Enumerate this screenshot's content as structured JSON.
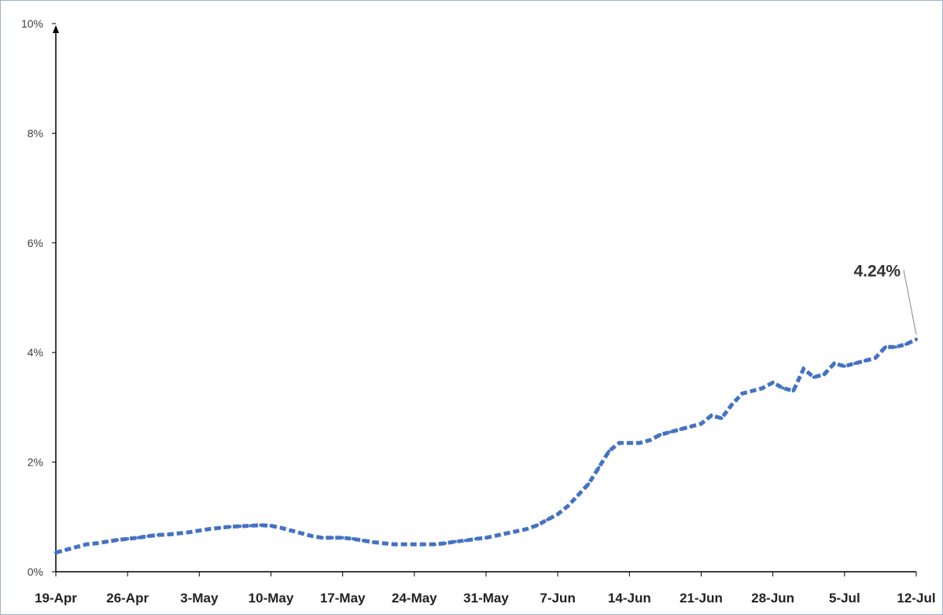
{
  "chart_data": {
    "type": "line",
    "title": "",
    "xlabel": "",
    "ylabel": "",
    "ylim": [
      0,
      10
    ],
    "yticks": [
      "0%",
      "2%",
      "4%",
      "6%",
      "8%",
      "10%"
    ],
    "xticks": [
      "19-Apr",
      "26-Apr",
      "3-May",
      "10-May",
      "17-May",
      "24-May",
      "31-May",
      "7-Jun",
      "14-Jun",
      "21-Jun",
      "28-Jun",
      "5-Jul",
      "12-Jul"
    ],
    "grid": false,
    "legend": "none",
    "line_color": "#4472c4",
    "line_style": "dashed",
    "annotation": {
      "text": "4.24%",
      "x": "2021-07-12",
      "y": 4.24
    },
    "series": [
      {
        "x": [
          "2021-04-19",
          "2021-04-20",
          "2021-04-21",
          "2021-04-22",
          "2021-04-23",
          "2021-04-24",
          "2021-04-25",
          "2021-04-26",
          "2021-04-27",
          "2021-04-28",
          "2021-04-29",
          "2021-04-30",
          "2021-05-01",
          "2021-05-02",
          "2021-05-03",
          "2021-05-04",
          "2021-05-05",
          "2021-05-06",
          "2021-05-07",
          "2021-05-08",
          "2021-05-09",
          "2021-05-10",
          "2021-05-11",
          "2021-05-12",
          "2021-05-13",
          "2021-05-14",
          "2021-05-15",
          "2021-05-16",
          "2021-05-17",
          "2021-05-18",
          "2021-05-19",
          "2021-05-20",
          "2021-05-21",
          "2021-05-22",
          "2021-05-23",
          "2021-05-24",
          "2021-05-25",
          "2021-05-26",
          "2021-05-27",
          "2021-05-28",
          "2021-05-29",
          "2021-05-30",
          "2021-05-31",
          "2021-06-01",
          "2021-06-02",
          "2021-06-03",
          "2021-06-04",
          "2021-06-05",
          "2021-06-06",
          "2021-06-07",
          "2021-06-08",
          "2021-06-09",
          "2021-06-10",
          "2021-06-11",
          "2021-06-12",
          "2021-06-13",
          "2021-06-14",
          "2021-06-15",
          "2021-06-16",
          "2021-06-17",
          "2021-06-18",
          "2021-06-19",
          "2021-06-20",
          "2021-06-21",
          "2021-06-22",
          "2021-06-23",
          "2021-06-24",
          "2021-06-25",
          "2021-06-26",
          "2021-06-27",
          "2021-06-28",
          "2021-06-29",
          "2021-06-30",
          "2021-07-01",
          "2021-07-02",
          "2021-07-03",
          "2021-07-04",
          "2021-07-05",
          "2021-07-06",
          "2021-07-07",
          "2021-07-08",
          "2021-07-09",
          "2021-07-10",
          "2021-07-11",
          "2021-07-12"
        ],
        "values": [
          0.35,
          0.4,
          0.45,
          0.5,
          0.52,
          0.55,
          0.58,
          0.6,
          0.62,
          0.65,
          0.67,
          0.68,
          0.7,
          0.72,
          0.75,
          0.78,
          0.8,
          0.82,
          0.83,
          0.84,
          0.85,
          0.84,
          0.8,
          0.75,
          0.7,
          0.65,
          0.62,
          0.62,
          0.62,
          0.6,
          0.57,
          0.54,
          0.52,
          0.5,
          0.5,
          0.5,
          0.5,
          0.5,
          0.52,
          0.55,
          0.57,
          0.6,
          0.62,
          0.66,
          0.7,
          0.74,
          0.78,
          0.85,
          0.95,
          1.05,
          1.2,
          1.4,
          1.6,
          1.9,
          2.2,
          2.35,
          2.35,
          2.35,
          2.4,
          2.5,
          2.55,
          2.6,
          2.65,
          2.7,
          2.85,
          2.8,
          3.05,
          3.25,
          3.3,
          3.35,
          3.45,
          3.35,
          3.3,
          3.7,
          3.55,
          3.6,
          3.8,
          3.75,
          3.8,
          3.85,
          3.9,
          4.1,
          4.1,
          4.15,
          4.24
        ]
      }
    ]
  }
}
